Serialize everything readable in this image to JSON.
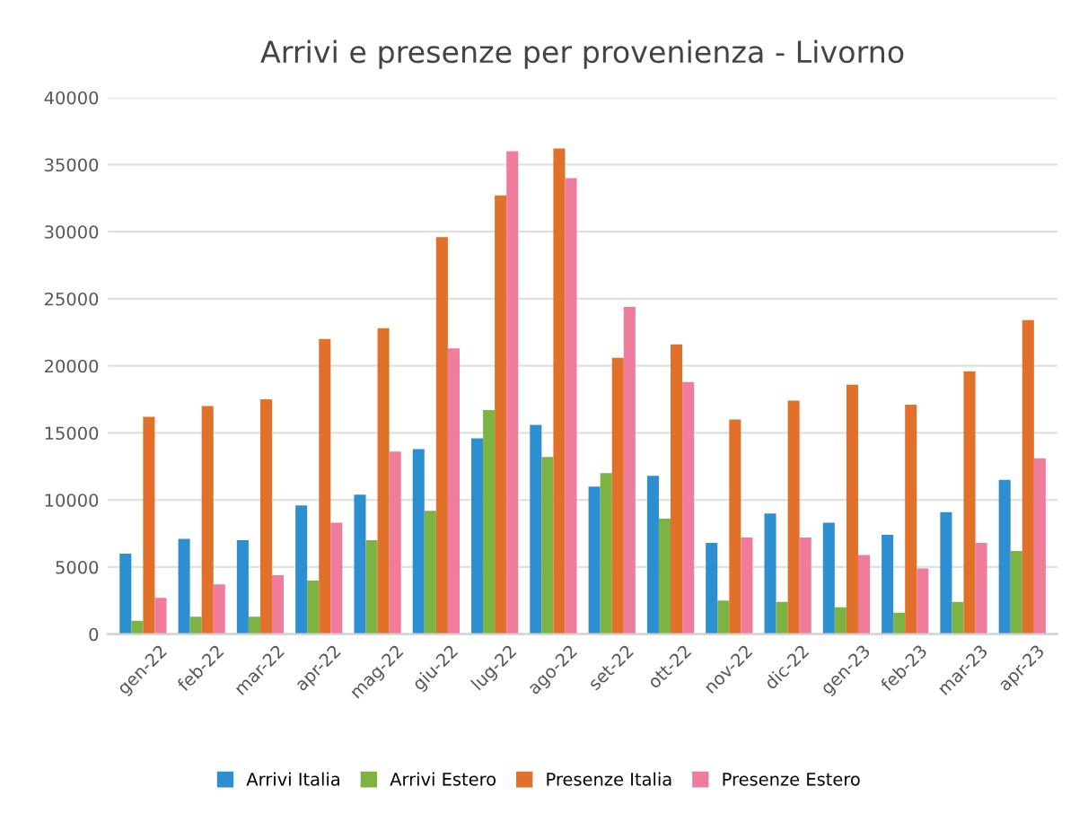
{
  "chart_data": {
    "type": "bar",
    "title": "Arrivi e presenze per provenienza - Livorno",
    "categories": [
      "gen-22",
      "feb-22",
      "mar-22",
      "apr-22",
      "mag-22",
      "giu-22",
      "lug-22",
      "ago-22",
      "set-22",
      "ott-22",
      "nov-22",
      "dic-22",
      "gen-23",
      "feb-23",
      "mar-23",
      "apr-23"
    ],
    "series": [
      {
        "name": "Arrivi Italia",
        "color": "#2e8fd0",
        "values": [
          6000,
          7100,
          7000,
          9600,
          10400,
          13800,
          14600,
          15600,
          11000,
          11800,
          6800,
          9000,
          8300,
          7400,
          9100,
          11500
        ]
      },
      {
        "name": "Arrivi Estero",
        "color": "#7cb342",
        "values": [
          1000,
          1300,
          1300,
          4000,
          7000,
          9200,
          16700,
          13200,
          12000,
          8600,
          2500,
          2400,
          2000,
          1600,
          2400,
          6200
        ]
      },
      {
        "name": "Presenze Italia",
        "color": "#e0702a",
        "values": [
          16200,
          17000,
          17500,
          22000,
          22800,
          29600,
          32700,
          36200,
          20600,
          21600,
          16000,
          17400,
          18600,
          17100,
          19600,
          23400
        ]
      },
      {
        "name": "Presenze Estero",
        "color": "#f07c9c",
        "values": [
          2700,
          3700,
          4400,
          8300,
          13600,
          21300,
          36000,
          34000,
          24400,
          18800,
          7200,
          7200,
          5900,
          4900,
          6800,
          13100
        ]
      }
    ],
    "ylim": [
      0,
      40000
    ],
    "yticks": [
      0,
      5000,
      10000,
      15000,
      20000,
      25000,
      30000,
      35000,
      40000
    ],
    "grid": "y",
    "legend": "bottom"
  }
}
